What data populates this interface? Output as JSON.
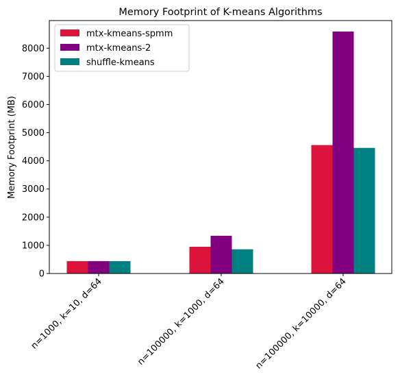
{
  "chart_data": {
    "type": "bar",
    "title": "Memory Footprint of K-means Algorithms",
    "xlabel": "",
    "ylabel": "Memory Footprint (MB)",
    "categories": [
      "n=1000, k=10, d=64",
      "n=100000, k=1000, d=64",
      "n=100000, k=10000, d=64"
    ],
    "series": [
      {
        "name": "mtx-kmeans-spmm",
        "color": "#dc143c",
        "values": [
          440,
          950,
          4560
        ]
      },
      {
        "name": "mtx-kmeans-2",
        "color": "#800080",
        "values": [
          440,
          1340,
          8590
        ]
      },
      {
        "name": "shuffle-kmeans",
        "color": "#008080",
        "values": [
          440,
          860,
          4460
        ]
      }
    ],
    "ylim": [
      0,
      8980
    ],
    "yticks": [
      0,
      1000,
      2000,
      3000,
      4000,
      5000,
      6000,
      7000,
      8000
    ],
    "legend": "top-left",
    "grid": false
  }
}
